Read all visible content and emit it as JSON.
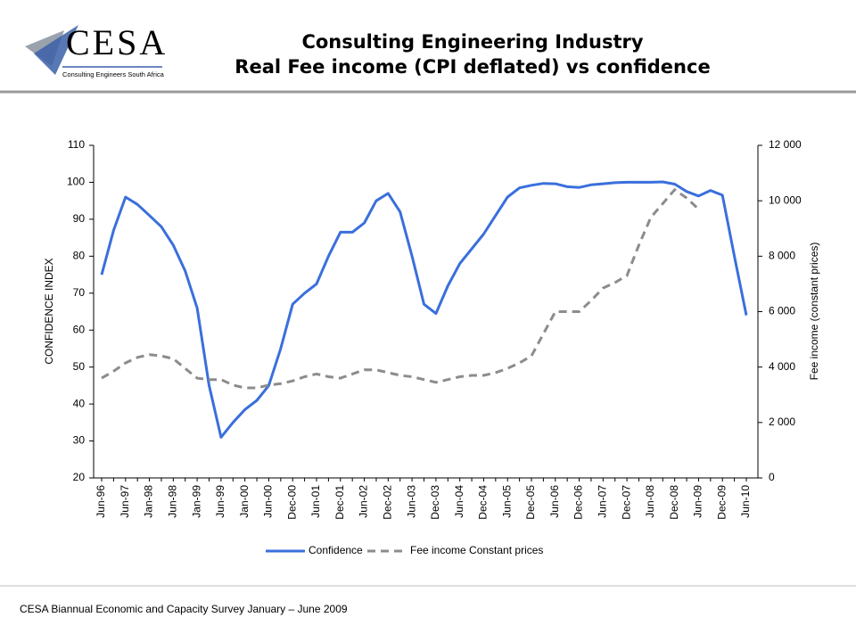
{
  "logo": {
    "name": "CESA",
    "tagline": "Consulting Engineers South Africa"
  },
  "footer": "CESA Biannual Economic and Capacity Survey January – June 2009",
  "chart_data": {
    "type": "line",
    "title": "Consulting Engineering Industry",
    "subtitle": "Real Fee income (CPI deflated) vs confidence",
    "y_label": "CONFIDENCE INDEX",
    "y2_label": "Fee income (constant prices)",
    "categories": [
      "Jun-96",
      null,
      "Jun-97",
      null,
      "Jan-98",
      null,
      "Jun-98",
      null,
      "Jan-99",
      null,
      "Jun-99",
      null,
      "Jan-00",
      null,
      "Jun-00",
      null,
      "Dec-00",
      null,
      "Jun-01",
      null,
      "Dec-01",
      null,
      "Jun-02",
      null,
      "Dec-02",
      null,
      "Jun-03",
      null,
      "Dec-03",
      null,
      "Jun-04",
      null,
      "Dec-04",
      null,
      "Jun-05",
      null,
      "Dec-05",
      null,
      "Jun-06",
      null,
      "Dec-06",
      null,
      "Jun-07",
      null,
      "Dec-07",
      null,
      "Jun-08",
      null,
      "Dec-08",
      null,
      "Jun-09",
      null,
      "Dec-09",
      null,
      "Jun-10"
    ],
    "series": [
      {
        "name": "Confidence",
        "color": "#3a6fdc",
        "dash": false,
        "values": [
          75,
          87,
          96,
          94,
          91,
          88,
          83,
          76,
          66,
          45,
          31,
          35,
          38.5,
          41,
          45,
          55,
          67,
          70,
          72.5,
          80,
          86.5,
          86.5,
          89,
          95,
          97,
          92,
          80,
          67,
          64.5,
          72,
          78,
          82,
          86,
          91,
          96,
          98.5,
          99.2,
          99.7,
          99.6,
          98.8,
          98.6,
          99.3,
          99.6,
          99.9,
          100,
          100,
          100,
          100.1,
          99.5,
          97.5,
          96.3,
          97.8,
          96.5,
          80,
          64
        ]
      },
      {
        "name": "Fee income Constant prices",
        "color": "#8c8c8c",
        "dash": true,
        "axis": "y2",
        "values": [
          3600,
          3850,
          4150,
          4350,
          4450,
          4400,
          4300,
          3950,
          3600,
          3550,
          3550,
          3350,
          3250,
          3250,
          3350,
          3400,
          3500,
          3650,
          3750,
          3650,
          3600,
          3750,
          3900,
          3900,
          3800,
          3700,
          3650,
          3550,
          3450,
          3550,
          3650,
          3700,
          3700,
          3800,
          3950,
          4150,
          4400,
          5200,
          6000,
          6000,
          6000,
          6400,
          6850,
          7050,
          7300,
          8400,
          9400,
          9900,
          10400,
          10100,
          9700,
          null,
          null,
          null,
          null
        ]
      }
    ],
    "ylim": [
      20,
      110
    ],
    "yticks": [
      20,
      30,
      40,
      50,
      60,
      70,
      80,
      90,
      100,
      110
    ],
    "y2lim": [
      0,
      12000
    ],
    "y2ticks": [
      0,
      {
        "value": 2000,
        "label": "2 000"
      },
      {
        "value": 4000,
        "label": "4 000"
      },
      {
        "value": 6000,
        "label": "6 000"
      },
      {
        "value": 8000,
        "label": "8 000"
      },
      {
        "value": 10000,
        "label": "10 000"
      },
      {
        "value": 12000,
        "label": "12 000"
      }
    ],
    "legend": "bottom"
  }
}
